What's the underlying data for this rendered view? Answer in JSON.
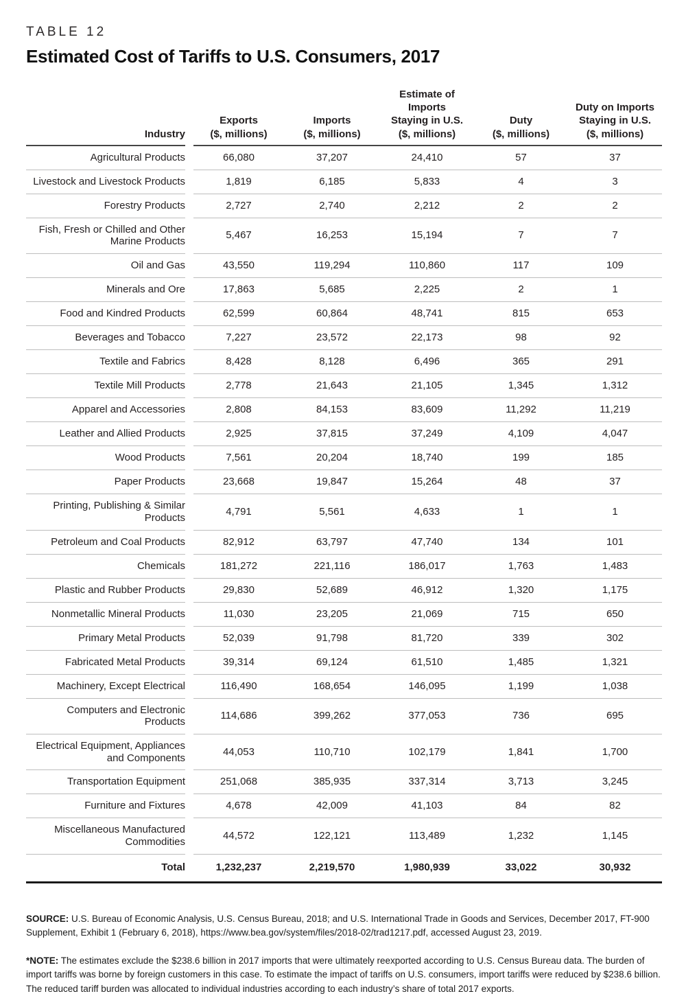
{
  "table": {
    "eyebrow": "TABLE 12",
    "title": "Estimated Cost of Tariffs to U.S. Consumers, 2017",
    "columns": [
      {
        "key": "industry",
        "lines": [
          "Industry"
        ]
      },
      {
        "key": "exports",
        "lines": [
          "Exports",
          "($, millions)"
        ]
      },
      {
        "key": "imports",
        "lines": [
          "Imports",
          "($, millions)"
        ]
      },
      {
        "key": "imports-staying",
        "lines": [
          "Estimate of",
          "Imports",
          "Staying in U.S.",
          "($, millions)"
        ]
      },
      {
        "key": "duty",
        "lines": [
          "Duty",
          "($, millions)"
        ]
      },
      {
        "key": "duty-staying",
        "lines": [
          "Duty on Imports",
          "Staying in U.S.",
          "($, millions)"
        ]
      }
    ],
    "rows": [
      {
        "industry": "Agricultural Products",
        "values": [
          "66,080",
          "37,207",
          "24,410",
          "57",
          "37"
        ]
      },
      {
        "industry": "Livestock and Livestock Products",
        "values": [
          "1,819",
          "6,185",
          "5,833",
          "4",
          "3"
        ]
      },
      {
        "industry": "Forestry Products",
        "values": [
          "2,727",
          "2,740",
          "2,212",
          "2",
          "2"
        ]
      },
      {
        "industry": "Fish, Fresh or Chilled and Other Marine Products",
        "values": [
          "5,467",
          "16,253",
          "15,194",
          "7",
          "7"
        ]
      },
      {
        "industry": "Oil and Gas",
        "values": [
          "43,550",
          "119,294",
          "110,860",
          "117",
          "109"
        ]
      },
      {
        "industry": "Minerals and Ore",
        "values": [
          "17,863",
          "5,685",
          "2,225",
          "2",
          "1"
        ]
      },
      {
        "industry": "Food and Kindred Products",
        "values": [
          "62,599",
          "60,864",
          "48,741",
          "815",
          "653"
        ]
      },
      {
        "industry": "Beverages and Tobacco",
        "values": [
          "7,227",
          "23,572",
          "22,173",
          "98",
          "92"
        ]
      },
      {
        "industry": "Textile and Fabrics",
        "values": [
          "8,428",
          "8,128",
          "6,496",
          "365",
          "291"
        ]
      },
      {
        "industry": "Textile Mill Products",
        "values": [
          "2,778",
          "21,643",
          "21,105",
          "1,345",
          "1,312"
        ]
      },
      {
        "industry": "Apparel and Accessories",
        "values": [
          "2,808",
          "84,153",
          "83,609",
          "11,292",
          "11,219"
        ]
      },
      {
        "industry": "Leather and Allied Products",
        "values": [
          "2,925",
          "37,815",
          "37,249",
          "4,109",
          "4,047"
        ]
      },
      {
        "industry": "Wood Products",
        "values": [
          "7,561",
          "20,204",
          "18,740",
          "199",
          "185"
        ]
      },
      {
        "industry": "Paper Products",
        "values": [
          "23,668",
          "19,847",
          "15,264",
          "48",
          "37"
        ]
      },
      {
        "industry": "Printing, Publishing & Similar Products",
        "values": [
          "4,791",
          "5,561",
          "4,633",
          "1",
          "1"
        ]
      },
      {
        "industry": "Petroleum and Coal Products",
        "values": [
          "82,912",
          "63,797",
          "47,740",
          "134",
          "101"
        ]
      },
      {
        "industry": "Chemicals",
        "values": [
          "181,272",
          "221,116",
          "186,017",
          "1,763",
          "1,483"
        ]
      },
      {
        "industry": "Plastic and Rubber Products",
        "values": [
          "29,830",
          "52,689",
          "46,912",
          "1,320",
          "1,175"
        ]
      },
      {
        "industry": "Nonmetallic Mineral Products",
        "values": [
          "11,030",
          "23,205",
          "21,069",
          "715",
          "650"
        ]
      },
      {
        "industry": "Primary Metal Products",
        "values": [
          "52,039",
          "91,798",
          "81,720",
          "339",
          "302"
        ]
      },
      {
        "industry": "Fabricated Metal Products",
        "values": [
          "39,314",
          "69,124",
          "61,510",
          "1,485",
          "1,321"
        ]
      },
      {
        "industry": "Machinery, Except Electrical",
        "values": [
          "116,490",
          "168,654",
          "146,095",
          "1,199",
          "1,038"
        ]
      },
      {
        "industry": "Computers and Electronic Products",
        "values": [
          "114,686",
          "399,262",
          "377,053",
          "736",
          "695"
        ]
      },
      {
        "industry": "Electrical Equipment, Appliances and Components",
        "values": [
          "44,053",
          "110,710",
          "102,179",
          "1,841",
          "1,700"
        ]
      },
      {
        "industry": "Transportation Equipment",
        "values": [
          "251,068",
          "385,935",
          "337,314",
          "3,713",
          "3,245"
        ]
      },
      {
        "industry": "Furniture and Fixtures",
        "values": [
          "4,678",
          "42,009",
          "41,103",
          "84",
          "82"
        ]
      },
      {
        "industry": "Miscellaneous Manufactured Commodities",
        "values": [
          "44,572",
          "122,121",
          "113,489",
          "1,232",
          "1,145"
        ]
      }
    ],
    "total": {
      "label": "Total",
      "values": [
        "1,232,237",
        "2,219,570",
        "1,980,939",
        "33,022",
        "30,932"
      ]
    }
  },
  "footnotes": {
    "source_label": "SOURCE:",
    "source_text": " U.S. Bureau of Economic Analysis, U.S. Census Bureau, 2018; and U.S. International Trade in Goods and Services, December 2017, FT-900 Supplement, Exhibit 1 (February 6, 2018), https://www.bea.gov/system/files/2018-02/trad1217.pdf, accessed August 23, 2019.",
    "note_label": "*NOTE:",
    "note_text": " The estimates exclude the $238.6 billion in 2017 imports that were ultimately reexported according to U.S. Census Bureau data. The burden of import tariffs was borne by foreign customers in this case. To estimate the impact of tariffs on U.S. consumers, import tariffs were reduced by $238.6 billion. The reduced tariff burden was allocated to individual industries according to each industry’s share of total 2017 exports."
  }
}
